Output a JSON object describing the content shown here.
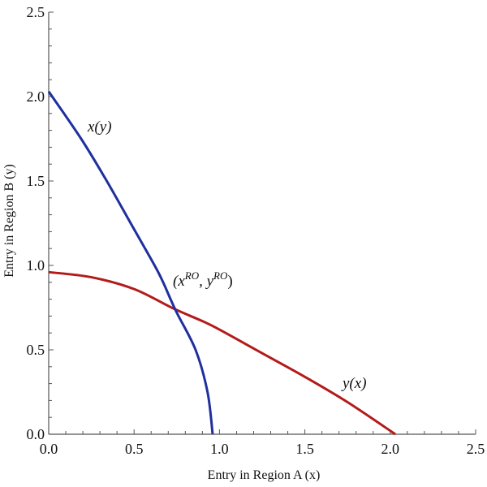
{
  "chart_data": {
    "type": "line",
    "title": "",
    "xlabel": "Entry in Region A (x)",
    "ylabel": "Entry in Region B (y)",
    "xlim": [
      0,
      2.5
    ],
    "ylim": [
      0,
      2.5
    ],
    "xticks": [
      "0.0",
      "0.5",
      "1.0",
      "1.5",
      "2.0",
      "2.5"
    ],
    "yticks": [
      "0.0",
      "0.5",
      "1.0",
      "1.5",
      "2.0",
      "2.5"
    ],
    "grid": false,
    "series": [
      {
        "name": "y(x)",
        "color": "#b31b1b",
        "x": [
          0.0,
          0.25,
          0.5,
          0.73,
          0.9,
          1.0,
          1.25,
          1.5,
          1.75,
          2.03
        ],
        "y": [
          0.96,
          0.93,
          0.86,
          0.745,
          0.67,
          0.62,
          0.48,
          0.34,
          0.19,
          0.0
        ]
      },
      {
        "name": "x(y)",
        "color": "#1f2f9e",
        "x": [
          0.96,
          0.93,
          0.86,
          0.745,
          0.67,
          0.62,
          0.48,
          0.34,
          0.19,
          0.0
        ],
        "y": [
          0.0,
          0.25,
          0.5,
          0.73,
          0.9,
          1.0,
          1.25,
          1.5,
          1.75,
          2.03
        ]
      }
    ],
    "annotations": [
      {
        "text": "x(y)",
        "x": 0.27,
        "y": 1.82
      },
      {
        "text": "y(x)",
        "x": 1.75,
        "y": 0.31
      },
      {
        "text": "(x^RO, y^RO)",
        "x": 0.73,
        "y": 0.745
      }
    ]
  },
  "labels": {
    "xlabel": "Entry in Region A (x)",
    "ylabel": "Entry in Region B (y)",
    "curve_red": "y(x)",
    "curve_blue": "x(y)",
    "eq_open": "(x",
    "eq_sup1": "RO",
    "eq_mid": ", y",
    "eq_sup2": "RO",
    "eq_close": ")"
  }
}
